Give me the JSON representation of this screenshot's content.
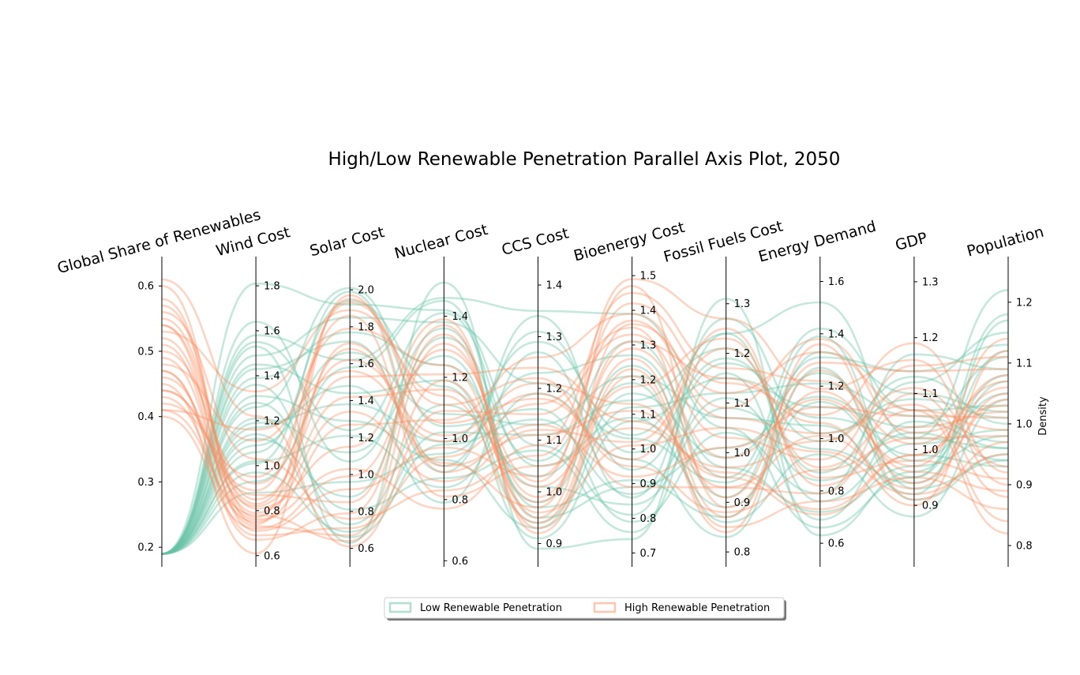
{
  "chart_data": {
    "type": "parallel-coordinates",
    "title": "High/Low Renewable Penetration Parallel Axis Plot, 2050",
    "right_ylabel": "Density",
    "legend": {
      "placement": "bottom-center",
      "entries": [
        {
          "name": "Low Renewable Penetration",
          "color": "#66c2a5"
        },
        {
          "name": "High Renewable Penetration",
          "color": "#fc8d62"
        }
      ]
    },
    "axes": [
      {
        "label": "Global Share of Renewables",
        "range": [
          0.17,
          0.645
        ],
        "ticks": [
          "0.2",
          "0.3",
          "0.4",
          "0.5",
          "0.6"
        ],
        "tick_values": [
          0.2,
          0.3,
          0.4,
          0.5,
          0.6
        ],
        "tick_side": "left"
      },
      {
        "label": "Wind Cost",
        "range": [
          0.55,
          1.93
        ],
        "ticks": [
          "0.6",
          "0.8",
          "1.0",
          "1.2",
          "1.4",
          "1.6",
          "1.8"
        ],
        "tick_values": [
          0.6,
          0.8,
          1.0,
          1.2,
          1.4,
          1.6,
          1.8
        ],
        "tick_side": "right"
      },
      {
        "label": "Solar Cost",
        "range": [
          0.5,
          2.18
        ],
        "ticks": [
          "0.6",
          "0.8",
          "1.0",
          "1.2",
          "1.4",
          "1.6",
          "1.8",
          "2.0"
        ],
        "tick_values": [
          0.6,
          0.8,
          1.0,
          1.2,
          1.4,
          1.6,
          1.8,
          2.0
        ],
        "tick_side": "right"
      },
      {
        "label": "Nuclear Cost",
        "range": [
          0.58,
          1.595
        ],
        "ticks": [
          "0.6",
          "0.8",
          "1.0",
          "1.2",
          "1.4"
        ],
        "tick_values": [
          0.6,
          0.8,
          1.0,
          1.2,
          1.4
        ],
        "tick_side": "right"
      },
      {
        "label": "CCS Cost",
        "range": [
          0.855,
          1.455
        ],
        "ticks": [
          "0.9",
          "1.0",
          "1.1",
          "1.2",
          "1.3",
          "1.4"
        ],
        "tick_values": [
          0.9,
          1.0,
          1.1,
          1.2,
          1.3,
          1.4
        ],
        "tick_side": "right"
      },
      {
        "label": "Bioenergy Cost",
        "range": [
          0.66,
          1.555
        ],
        "ticks": [
          "0.7",
          "0.8",
          "0.9",
          "1.0",
          "1.1",
          "1.2",
          "1.3",
          "1.4",
          "1.5"
        ],
        "tick_values": [
          0.7,
          0.8,
          0.9,
          1.0,
          1.1,
          1.2,
          1.3,
          1.4,
          1.5
        ],
        "tick_side": "right"
      },
      {
        "label": "Fossil Fuels Cost",
        "range": [
          0.77,
          1.395
        ],
        "ticks": [
          "0.8",
          "0.9",
          "1.0",
          "1.1",
          "1.2",
          "1.3"
        ],
        "tick_values": [
          0.8,
          0.9,
          1.0,
          1.1,
          1.2,
          1.3
        ],
        "tick_side": "right"
      },
      {
        "label": "Energy Demand",
        "range": [
          0.51,
          1.695
        ],
        "ticks": [
          "0.6",
          "0.8",
          "1.0",
          "1.2",
          "1.4",
          "1.6"
        ],
        "tick_values": [
          0.6,
          0.8,
          1.0,
          1.2,
          1.4,
          1.6
        ],
        "tick_side": "right"
      },
      {
        "label": "GDP",
        "range": [
          0.79,
          1.345
        ],
        "ticks": [
          "0.9",
          "1.0",
          "1.1",
          "1.2",
          "1.3"
        ],
        "tick_values": [
          0.9,
          1.0,
          1.1,
          1.2,
          1.3
        ],
        "tick_side": "right"
      },
      {
        "label": "Population",
        "range": [
          0.765,
          1.275
        ],
        "ticks": [
          "0.8",
          "0.9",
          "1.0",
          "1.1",
          "1.2"
        ],
        "tick_values": [
          0.8,
          0.9,
          1.0,
          1.1,
          1.2
        ],
        "tick_side": "right"
      }
    ],
    "series": [
      {
        "group": "Low Renewable Penetration",
        "values": [
          0.19,
          1.81,
          1.92,
          1.42,
          1.09,
          0.81,
          1.24,
          1.52,
          1.02,
          1.22
        ]
      },
      {
        "group": "Low Renewable Penetration",
        "values": [
          0.19,
          1.58,
          1.62,
          1.46,
          1.35,
          1.39,
          1.05,
          0.66,
          0.95,
          1.18
        ]
      },
      {
        "group": "Low Renewable Penetration",
        "values": [
          0.19,
          1.53,
          0.63,
          1.51,
          0.89,
          0.74,
          1.31,
          0.63,
          0.96,
          1.08
        ]
      },
      {
        "group": "Low Renewable Penetration",
        "values": [
          0.19,
          1.49,
          1.85,
          1.38,
          1.21,
          1.03,
          0.94,
          1.31,
          1.14,
          1.13
        ]
      },
      {
        "group": "Low Renewable Penetration",
        "values": [
          0.19,
          1.43,
          1.72,
          0.89,
          1.34,
          0.94,
          1.18,
          1.08,
          1.02,
          0.96
        ]
      },
      {
        "group": "Low Renewable Penetration",
        "values": [
          0.19,
          1.36,
          0.73,
          1.11,
          1.03,
          1.19,
          0.86,
          0.94,
          0.88,
          1.04
        ]
      },
      {
        "group": "Low Renewable Penetration",
        "values": [
          0.19,
          1.31,
          1.29,
          0.93,
          0.93,
          1.12,
          1.12,
          1.21,
          1.06,
          0.97
        ]
      },
      {
        "group": "Low Renewable Penetration",
        "values": [
          0.19,
          1.26,
          2.01,
          1.04,
          1.16,
          0.79,
          1.04,
          0.79,
          1.17,
          1.09
        ]
      },
      {
        "group": "Low Renewable Penetration",
        "values": [
          0.19,
          1.21,
          1.12,
          1.27,
          0.98,
          1.24,
          0.91,
          1.39,
          0.93,
          0.94
        ]
      },
      {
        "group": "Low Renewable Penetration",
        "values": [
          0.19,
          1.17,
          1.48,
          0.79,
          1.27,
          0.86,
          1.27,
          1.02,
          1.09,
          1.01
        ]
      },
      {
        "group": "Low Renewable Penetration",
        "values": [
          0.19,
          1.12,
          0.88,
          1.33,
          1.06,
          1.31,
          0.97,
          0.72,
          0.97,
          0.98
        ]
      },
      {
        "group": "Low Renewable Penetration",
        "values": [
          0.19,
          1.06,
          1.94,
          1.17,
          0.91,
          1.08,
          1.15,
          1.12,
          1.04,
          1.11
        ]
      },
      {
        "group": "Low Renewable Penetration",
        "values": [
          0.19,
          1.02,
          1.21,
          0.84,
          1.19,
          0.97,
          0.83,
          1.27,
          0.91,
          0.95
        ]
      },
      {
        "group": "Low Renewable Penetration",
        "values": [
          0.19,
          0.97,
          0.69,
          1.02,
          1.11,
          1.14,
          1.21,
          0.87,
          1.12,
          1.15
        ]
      },
      {
        "group": "Low Renewable Penetration",
        "values": [
          0.19,
          0.93,
          1.58,
          1.45,
          0.95,
          0.89,
          1.01,
          1.16,
          0.99,
          0.93
        ]
      },
      {
        "group": "Low Renewable Penetration",
        "values": [
          0.19,
          0.88,
          0.96,
          0.95,
          1.23,
          1.27,
          0.95,
          1.42,
          1.07,
          1.03
        ]
      },
      {
        "group": "Low Renewable Penetration",
        "values": [
          0.19,
          1.39,
          1.77,
          1.24,
          1.01,
          0.84,
          1.09,
          0.96,
          0.94,
          1.07
        ]
      },
      {
        "group": "Low Renewable Penetration",
        "values": [
          0.19,
          1.19,
          1.38,
          0.99,
          1.29,
          1.04,
          1.24,
          0.76,
          1.01,
          0.99
        ]
      },
      {
        "group": "Low Renewable Penetration",
        "values": [
          0.19,
          1.64,
          1.07,
          1.36,
          0.97,
          0.91,
          0.87,
          1.33,
          1.1,
          1.02
        ]
      },
      {
        "group": "Low Renewable Penetration",
        "values": [
          0.19,
          1.09,
          1.66,
          1.08,
          1.13,
          1.21,
          1.07,
          1.05,
          0.92,
          1.17
        ]
      },
      {
        "group": "Low Renewable Penetration",
        "values": [
          0.19,
          1.28,
          0.81,
          0.87,
          1.08,
          0.76,
          1.16,
          0.69,
          1.05,
          0.96
        ]
      },
      {
        "group": "Low Renewable Penetration",
        "values": [
          0.19,
          1.45,
          1.44,
          1.19,
          0.94,
          1.16,
          0.99,
          1.25,
          0.98,
          1.05
        ]
      },
      {
        "group": "Low Renewable Penetration",
        "values": [
          0.19,
          1.01,
          1.99,
          0.91,
          1.31,
          0.99,
          1.19,
          0.99,
          1.13,
          1.0
        ]
      },
      {
        "group": "Low Renewable Penetration",
        "values": [
          0.19,
          1.55,
          1.24,
          1.41,
          1.05,
          1.09,
          0.89,
          1.14,
          0.95,
          1.12
        ]
      },
      {
        "group": "Low Renewable Penetration",
        "values": [
          0.19,
          1.14,
          0.66,
          0.98,
          1.14,
          0.87,
          1.11,
          0.84,
          1.03,
          0.94
        ]
      },
      {
        "group": "High Renewable Penetration",
        "values": [
          0.61,
          1.22,
          0.61,
          1.09,
          1.15,
          1.33,
          1.03,
          0.92,
          1.15,
          1.11
        ]
      },
      {
        "group": "High Renewable Penetration",
        "values": [
          0.6,
          0.74,
          1.71,
          0.92,
          0.97,
          1.47,
          0.89,
          1.18,
          0.96,
          0.89
        ]
      },
      {
        "group": "High Renewable Penetration",
        "values": [
          0.58,
          0.77,
          1.95,
          1.05,
          1.18,
          0.97,
          1.25,
          0.82,
          1.04,
          1.02
        ]
      },
      {
        "group": "High Renewable Penetration",
        "values": [
          0.57,
          0.81,
          1.15,
          1.39,
          0.92,
          1.21,
          0.84,
          1.36,
          0.91,
          0.97
        ]
      },
      {
        "group": "High Renewable Penetration",
        "values": [
          0.56,
          1.03,
          0.76,
          0.83,
          1.07,
          1.37,
          1.07,
          1.02,
          1.08,
          0.84
        ]
      },
      {
        "group": "High Renewable Penetration",
        "values": [
          0.55,
          0.85,
          1.53,
          1.21,
          1.24,
          1.08,
          0.96,
          0.73,
          0.99,
          1.06
        ]
      },
      {
        "group": "High Renewable Penetration",
        "values": [
          0.54,
          0.71,
          0.92,
          0.97,
          1.03,
          1.42,
          1.14,
          1.09,
          1.19,
          0.92
        ]
      },
      {
        "group": "High Renewable Penetration",
        "values": [
          0.53,
          1.33,
          1.89,
          1.14,
          0.94,
          1.26,
          0.87,
          1.26,
          0.94,
          1.04
        ]
      },
      {
        "group": "High Renewable Penetration",
        "values": [
          0.52,
          0.79,
          1.34,
          0.86,
          1.12,
          1.02,
          1.21,
          0.89,
          1.07,
          0.99
        ]
      },
      {
        "group": "High Renewable Penetration",
        "values": [
          0.51,
          0.73,
          0.67,
          1.31,
          0.99,
          1.29,
          0.99,
          1.15,
          0.97,
          1.14
        ]
      },
      {
        "group": "High Renewable Penetration",
        "values": [
          0.5,
          0.92,
          1.62,
          1.01,
          1.21,
          1.13,
          0.93,
          0.79,
          1.1,
          0.88
        ]
      },
      {
        "group": "High Renewable Penetration",
        "values": [
          0.49,
          0.76,
          1.03,
          0.77,
          1.09,
          1.45,
          1.17,
          1.22,
          1.01,
          1.07
        ]
      },
      {
        "group": "High Renewable Penetration",
        "values": [
          0.48,
          1.11,
          1.79,
          1.24,
          0.96,
          1.01,
          1.05,
          0.95,
          0.92,
          0.95
        ]
      },
      {
        "group": "High Renewable Penetration",
        "values": [
          0.47,
          0.69,
          0.71,
          0.94,
          1.17,
          1.35,
          0.91,
          1.29,
          1.14,
          1.09
        ]
      },
      {
        "group": "High Renewable Penetration",
        "values": [
          0.46,
          0.82,
          1.42,
          1.16,
          1.01,
          1.18,
          1.23,
          0.85,
          0.98,
          0.91
        ]
      },
      {
        "group": "High Renewable Penetration",
        "values": [
          0.45,
          0.61,
          1.97,
          0.89,
          1.13,
          0.92,
          1.01,
          1.12,
          1.06,
          1.01
        ]
      },
      {
        "group": "High Renewable Penetration",
        "values": [
          0.44,
          0.87,
          0.85,
          1.37,
          0.93,
          1.23,
          0.85,
          0.76,
          0.95,
          0.86
        ]
      },
      {
        "group": "High Renewable Penetration",
        "values": [
          0.43,
          0.75,
          1.27,
          1.06,
          1.26,
          1.39,
          1.09,
          1.38,
          1.03,
          1.03
        ]
      },
      {
        "group": "High Renewable Penetration",
        "values": [
          0.42,
          0.95,
          1.86,
          0.81,
          1.05,
          1.06,
          0.97,
          0.99,
          1.11,
          0.93
        ]
      },
      {
        "group": "High Renewable Penetration",
        "values": [
          0.41,
          0.78,
          0.64,
          1.19,
          0.98,
          1.31,
          1.15,
          1.06,
          0.9,
          1.12
        ]
      },
      {
        "group": "High Renewable Penetration",
        "values": [
          0.41,
          1.16,
          1.56,
          0.99,
          1.19,
          0.95,
          0.88,
          0.88,
          1.02,
          0.98
        ]
      },
      {
        "group": "High Renewable Penetration",
        "values": [
          0.4,
          0.72,
          0.99,
          1.29,
          1.02,
          1.49,
          1.27,
          1.19,
          1.16,
          0.9
        ]
      },
      {
        "group": "High Renewable Penetration",
        "values": [
          0.54,
          0.83,
          1.68,
          0.91,
          1.11,
          1.11,
          0.95,
          0.71,
          0.99,
          1.08
        ]
      },
      {
        "group": "High Renewable Penetration",
        "values": [
          0.47,
          0.67,
          0.79,
          1.34,
          0.95,
          1.36,
          1.12,
          1.33,
          1.07,
          0.82
        ]
      },
      {
        "group": "High Renewable Penetration",
        "values": [
          0.44,
          0.89,
          1.93,
          1.11,
          1.22,
          0.89,
          0.93,
          1.01,
          0.93,
          1.05
        ]
      }
    ]
  }
}
